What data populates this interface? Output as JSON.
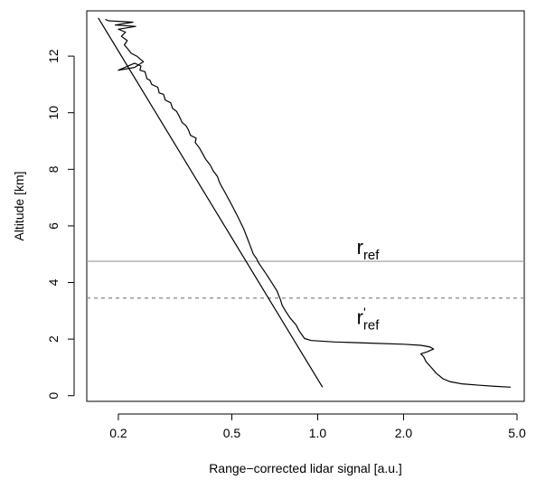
{
  "chart_data": {
    "type": "line",
    "title": "",
    "xlabel": "Range−corrected lidar signal [a.u.]",
    "ylabel": "Altitude [km]",
    "x_scale": "log",
    "xlim": [
      0.155,
      5.3
    ],
    "ylim": [
      -0.2,
      13.6
    ],
    "x_ticks": [
      {
        "value": 0.2,
        "label": "0.2"
      },
      {
        "value": 0.5,
        "label": "0.5"
      },
      {
        "value": 1.0,
        "label": "1.0"
      },
      {
        "value": 2.0,
        "label": "2.0"
      },
      {
        "value": 5.0,
        "label": "5.0"
      }
    ],
    "y_ticks": [
      {
        "value": 0,
        "label": "0"
      },
      {
        "value": 2,
        "label": "2"
      },
      {
        "value": 4,
        "label": "4"
      },
      {
        "value": 6,
        "label": "6"
      },
      {
        "value": 8,
        "label": "8"
      },
      {
        "value": 10,
        "label": "10"
      },
      {
        "value": 12,
        "label": "12"
      }
    ],
    "grid": false,
    "legend": "none",
    "series": [
      {
        "style": "solid",
        "color": "#000000",
        "points": [
          [
            4.75,
            0.3
          ],
          [
            4.2,
            0.33
          ],
          [
            3.7,
            0.37
          ],
          [
            3.2,
            0.42
          ],
          [
            2.9,
            0.5
          ],
          [
            2.75,
            0.6
          ],
          [
            2.6,
            0.8
          ],
          [
            2.5,
            1.0
          ],
          [
            2.4,
            1.2
          ],
          [
            2.35,
            1.38
          ],
          [
            2.3,
            1.48
          ],
          [
            2.42,
            1.55
          ],
          [
            2.55,
            1.65
          ],
          [
            2.48,
            1.72
          ],
          [
            2.3,
            1.78
          ],
          [
            2.0,
            1.82
          ],
          [
            1.5,
            1.86
          ],
          [
            1.15,
            1.9
          ],
          [
            0.95,
            1.95
          ],
          [
            0.9,
            2.02
          ],
          [
            0.88,
            2.15
          ],
          [
            0.86,
            2.3
          ],
          [
            0.84,
            2.5
          ],
          [
            0.8,
            2.75
          ],
          [
            0.77,
            3.0
          ],
          [
            0.75,
            3.2
          ],
          [
            0.74,
            3.4
          ],
          [
            0.73,
            3.55
          ],
          [
            0.72,
            3.7
          ],
          [
            0.7,
            3.9
          ],
          [
            0.68,
            4.1
          ],
          [
            0.66,
            4.3
          ],
          [
            0.64,
            4.5
          ],
          [
            0.62,
            4.7
          ],
          [
            0.61,
            4.85
          ],
          [
            0.595,
            5.0
          ],
          [
            0.58,
            5.3
          ],
          [
            0.565,
            5.6
          ],
          [
            0.55,
            5.9
          ],
          [
            0.535,
            6.15
          ],
          [
            0.52,
            6.4
          ],
          [
            0.505,
            6.65
          ],
          [
            0.49,
            6.9
          ],
          [
            0.475,
            7.15
          ],
          [
            0.46,
            7.4
          ],
          [
            0.452,
            7.55
          ],
          [
            0.445,
            7.75
          ],
          [
            0.43,
            7.95
          ],
          [
            0.42,
            8.15
          ],
          [
            0.405,
            8.35
          ],
          [
            0.395,
            8.55
          ],
          [
            0.385,
            8.75
          ],
          [
            0.372,
            8.95
          ],
          [
            0.375,
            9.1
          ],
          [
            0.358,
            9.2
          ],
          [
            0.352,
            9.4
          ],
          [
            0.345,
            9.55
          ],
          [
            0.335,
            9.65
          ],
          [
            0.328,
            9.85
          ],
          [
            0.32,
            10.05
          ],
          [
            0.31,
            10.15
          ],
          [
            0.305,
            10.35
          ],
          [
            0.292,
            10.45
          ],
          [
            0.288,
            10.65
          ],
          [
            0.278,
            10.7
          ],
          [
            0.275,
            10.9
          ],
          [
            0.262,
            11.0
          ],
          [
            0.258,
            11.15
          ],
          [
            0.252,
            11.2
          ],
          [
            0.248,
            11.45
          ],
          [
            0.238,
            11.5
          ],
          [
            0.24,
            11.65
          ],
          [
            0.228,
            11.75
          ],
          [
            0.2,
            11.5
          ],
          [
            0.228,
            11.6
          ],
          [
            0.245,
            11.8
          ],
          [
            0.232,
            12.0
          ],
          [
            0.222,
            12.1
          ],
          [
            0.218,
            12.2
          ],
          [
            0.21,
            12.4
          ],
          [
            0.215,
            12.55
          ],
          [
            0.205,
            12.7
          ],
          [
            0.212,
            12.85
          ],
          [
            0.2,
            12.95
          ],
          [
            0.23,
            13.05
          ],
          [
            0.195,
            13.1
          ],
          [
            0.225,
            13.2
          ],
          [
            0.185,
            13.25
          ],
          [
            0.18,
            13.3
          ]
        ]
      },
      {
        "style": "solid",
        "color": "#000000",
        "points": [
          [
            1.04,
            0.3
          ],
          [
            0.17,
            13.35
          ]
        ]
      }
    ],
    "hlines": [
      {
        "y": 4.75,
        "style": "solid",
        "color": "#999999",
        "label": "r",
        "sub": "ref",
        "prime": false,
        "label_x": 1.5
      },
      {
        "y": 3.45,
        "style": "dashed",
        "color": "#888888",
        "label": "r",
        "sub": "ref",
        "prime": true,
        "label_x": 1.5
      }
    ]
  }
}
